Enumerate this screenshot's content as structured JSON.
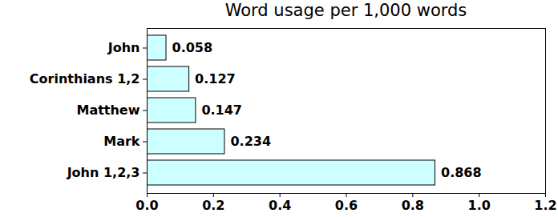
{
  "chart_data": {
    "type": "bar",
    "title": "Word usage per 1,000 words",
    "orientation": "horizontal",
    "categories": [
      "John",
      "Corinthians 1,2",
      "Matthew",
      "Mark",
      "John 1,2,3"
    ],
    "values": [
      0.058,
      0.127,
      0.147,
      0.234,
      0.868
    ],
    "color": "#ccffff",
    "xlim": [
      0,
      1.2
    ],
    "xticks": [
      {
        "value": 0,
        "label": "0.0"
      },
      0.2,
      0.4,
      0.6,
      0.8,
      {
        "value": 1,
        "label": "1.0"
      },
      1.2
    ],
    "grid": false,
    "data_labels": true
  }
}
